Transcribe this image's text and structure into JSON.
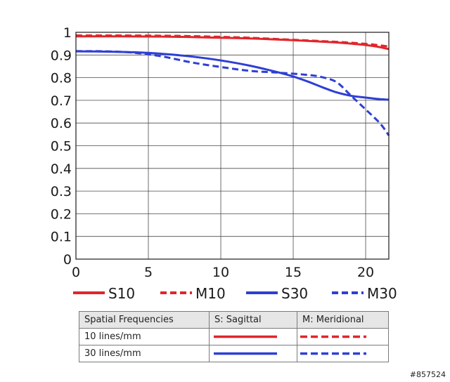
{
  "chart_data": {
    "type": "line",
    "xlim": [
      0,
      21.6
    ],
    "ylim": [
      0,
      1
    ],
    "x_ticks": [
      "0",
      "5",
      "10",
      "15",
      "20"
    ],
    "y_ticks": [
      "1",
      "0.9",
      "0.8",
      "0.7",
      "0.6",
      "0.5",
      "0.4",
      "0.3",
      "0.2",
      "0.1",
      "0"
    ],
    "grid": true,
    "legend_position": "bottom",
    "series": [
      {
        "name": "S10",
        "color": "#e0262b",
        "style": "solid",
        "x": [
          0,
          3,
          6,
          8,
          10,
          12,
          14,
          16,
          18,
          19,
          20,
          20.8,
          21.6
        ],
        "y": [
          0.982,
          0.982,
          0.981,
          0.979,
          0.976,
          0.973,
          0.968,
          0.962,
          0.955,
          0.95,
          0.944,
          0.937,
          0.926
        ]
      },
      {
        "name": "M10",
        "color": "#e0262b",
        "style": "dashed",
        "x": [
          0,
          3,
          6,
          8,
          10,
          12,
          14,
          16,
          18,
          19,
          20,
          20.8,
          21.6
        ],
        "y": [
          0.986,
          0.986,
          0.985,
          0.983,
          0.98,
          0.976,
          0.97,
          0.964,
          0.958,
          0.954,
          0.949,
          0.944,
          0.937
        ]
      },
      {
        "name": "S30",
        "color": "#2f3fd4",
        "style": "solid",
        "x": [
          0,
          2,
          4,
          6,
          8,
          10,
          12,
          14,
          15,
          16,
          17,
          18,
          19,
          20,
          21,
          21.6
        ],
        "y": [
          0.916,
          0.915,
          0.912,
          0.905,
          0.893,
          0.876,
          0.853,
          0.823,
          0.805,
          0.783,
          0.758,
          0.735,
          0.72,
          0.712,
          0.705,
          0.703
        ]
      },
      {
        "name": "M30",
        "color": "#2f3fd4",
        "style": "dashed",
        "x": [
          0,
          2,
          4,
          6,
          8,
          10,
          12,
          14,
          16,
          17,
          18,
          19,
          20,
          21,
          21.6
        ],
        "y": [
          0.917,
          0.916,
          0.91,
          0.893,
          0.867,
          0.847,
          0.83,
          0.822,
          0.812,
          0.802,
          0.78,
          0.72,
          0.66,
          0.598,
          0.545
        ]
      }
    ]
  },
  "legend": [
    {
      "label": "S10",
      "color": "#e0262b",
      "dashed": false
    },
    {
      "label": "M10",
      "color": "#e0262b",
      "dashed": true
    },
    {
      "label": "S30",
      "color": "#2f3fd4",
      "dashed": false
    },
    {
      "label": "M30",
      "color": "#2f3fd4",
      "dashed": true
    }
  ],
  "table": {
    "headers": [
      "Spatial Frequencies",
      "S: Sagittal",
      "M: Meridional"
    ],
    "rows": [
      {
        "label": "10 lines/mm",
        "color": "#e0262b"
      },
      {
        "label": "30 lines/mm",
        "color": "#2f3fd4"
      }
    ]
  },
  "watermark": "#857524"
}
